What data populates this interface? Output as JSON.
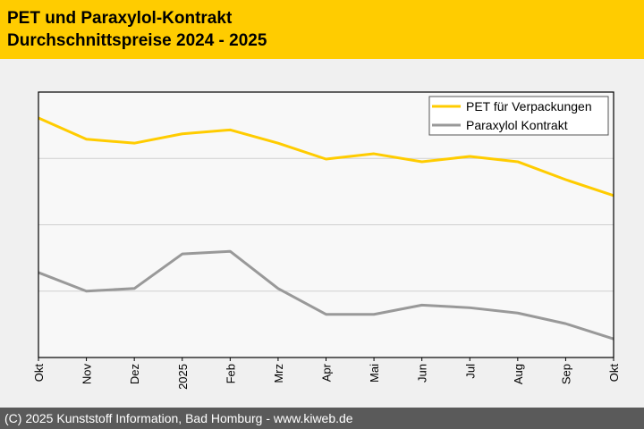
{
  "header": {
    "title_line1": "PET und Paraxylol-Kontrakt",
    "title_line2": "Durchschnittspreise 2024 - 2025"
  },
  "footer": {
    "text": "(C) 2025 Kunststoff Information, Bad Homburg - www.kiweb.de"
  },
  "chart_data": {
    "type": "line",
    "title": "PET und Paraxylol-Kontrakt Durchschnittspreise 2024 - 2025",
    "xlabel": "",
    "ylabel": "",
    "categories": [
      "Okt",
      "Nov",
      "Dez",
      "2025",
      "Feb",
      "Mrz",
      "Apr",
      "Mai",
      "Jun",
      "Jul",
      "Aug",
      "Sep",
      "Okt"
    ],
    "ylim": [
      0,
      4
    ],
    "yticks": [
      1,
      2,
      3
    ],
    "grid": true,
    "legend": "top-right",
    "series": [
      {
        "name": "PET für Verpackungen",
        "color": "#ffcc00",
        "values": [
          3.61,
          3.29,
          3.23,
          3.37,
          3.43,
          3.23,
          2.99,
          3.07,
          2.95,
          3.03,
          2.95,
          2.68,
          2.44
        ]
      },
      {
        "name": "Paraxylol Kontrakt",
        "color": "#999999",
        "values": [
          1.28,
          1.0,
          1.04,
          1.56,
          1.6,
          1.04,
          0.65,
          0.65,
          0.79,
          0.75,
          0.67,
          0.51,
          0.28
        ]
      }
    ]
  }
}
